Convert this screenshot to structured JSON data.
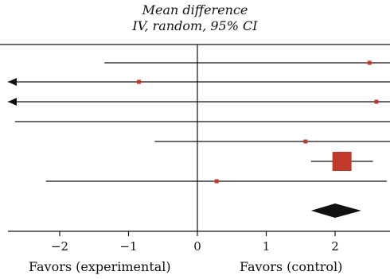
{
  "chart_data": {
    "type": "forest",
    "title_line1": "Mean difference",
    "title_line2": "IV, random, 95% CI",
    "xlim": [
      -2.8,
      2.8
    ],
    "xticks": [
      -2,
      -1,
      0,
      1,
      2
    ],
    "xtick_labels": [
      "−2",
      "−1",
      "0",
      "1",
      "2"
    ],
    "favors_left": "Favors (experimental)",
    "favors_right": "Favors (control)",
    "studies": [
      {
        "lower": -1.35,
        "upper": 2.8,
        "estimate": 2.5,
        "arrow_left": false,
        "arrow_right": false,
        "weight": "small"
      },
      {
        "lower": -2.8,
        "upper": 2.8,
        "estimate": -0.85,
        "arrow_left": true,
        "arrow_right": false,
        "weight": "small"
      },
      {
        "lower": -2.8,
        "upper": 2.8,
        "estimate": 2.6,
        "arrow_left": true,
        "arrow_right": false,
        "weight": "small"
      },
      {
        "lower": -2.65,
        "upper": 2.8,
        "estimate": null,
        "arrow_left": false,
        "arrow_right": false,
        "weight": "none"
      },
      {
        "lower": -0.62,
        "upper": 2.8,
        "estimate": 1.57,
        "arrow_left": false,
        "arrow_right": false,
        "weight": "small"
      },
      {
        "lower": 1.65,
        "upper": 2.55,
        "estimate": 2.1,
        "arrow_left": false,
        "arrow_right": false,
        "weight": "large"
      },
      {
        "lower": -2.2,
        "upper": 2.75,
        "estimate": 0.28,
        "arrow_left": false,
        "arrow_right": false,
        "weight": "small"
      }
    ],
    "pooled": {
      "estimate": 2.0,
      "lower": 1.65,
      "upper": 2.38
    },
    "colors": {
      "marker": "#c0392b",
      "line": "#111111",
      "diamond": "#111111"
    }
  }
}
